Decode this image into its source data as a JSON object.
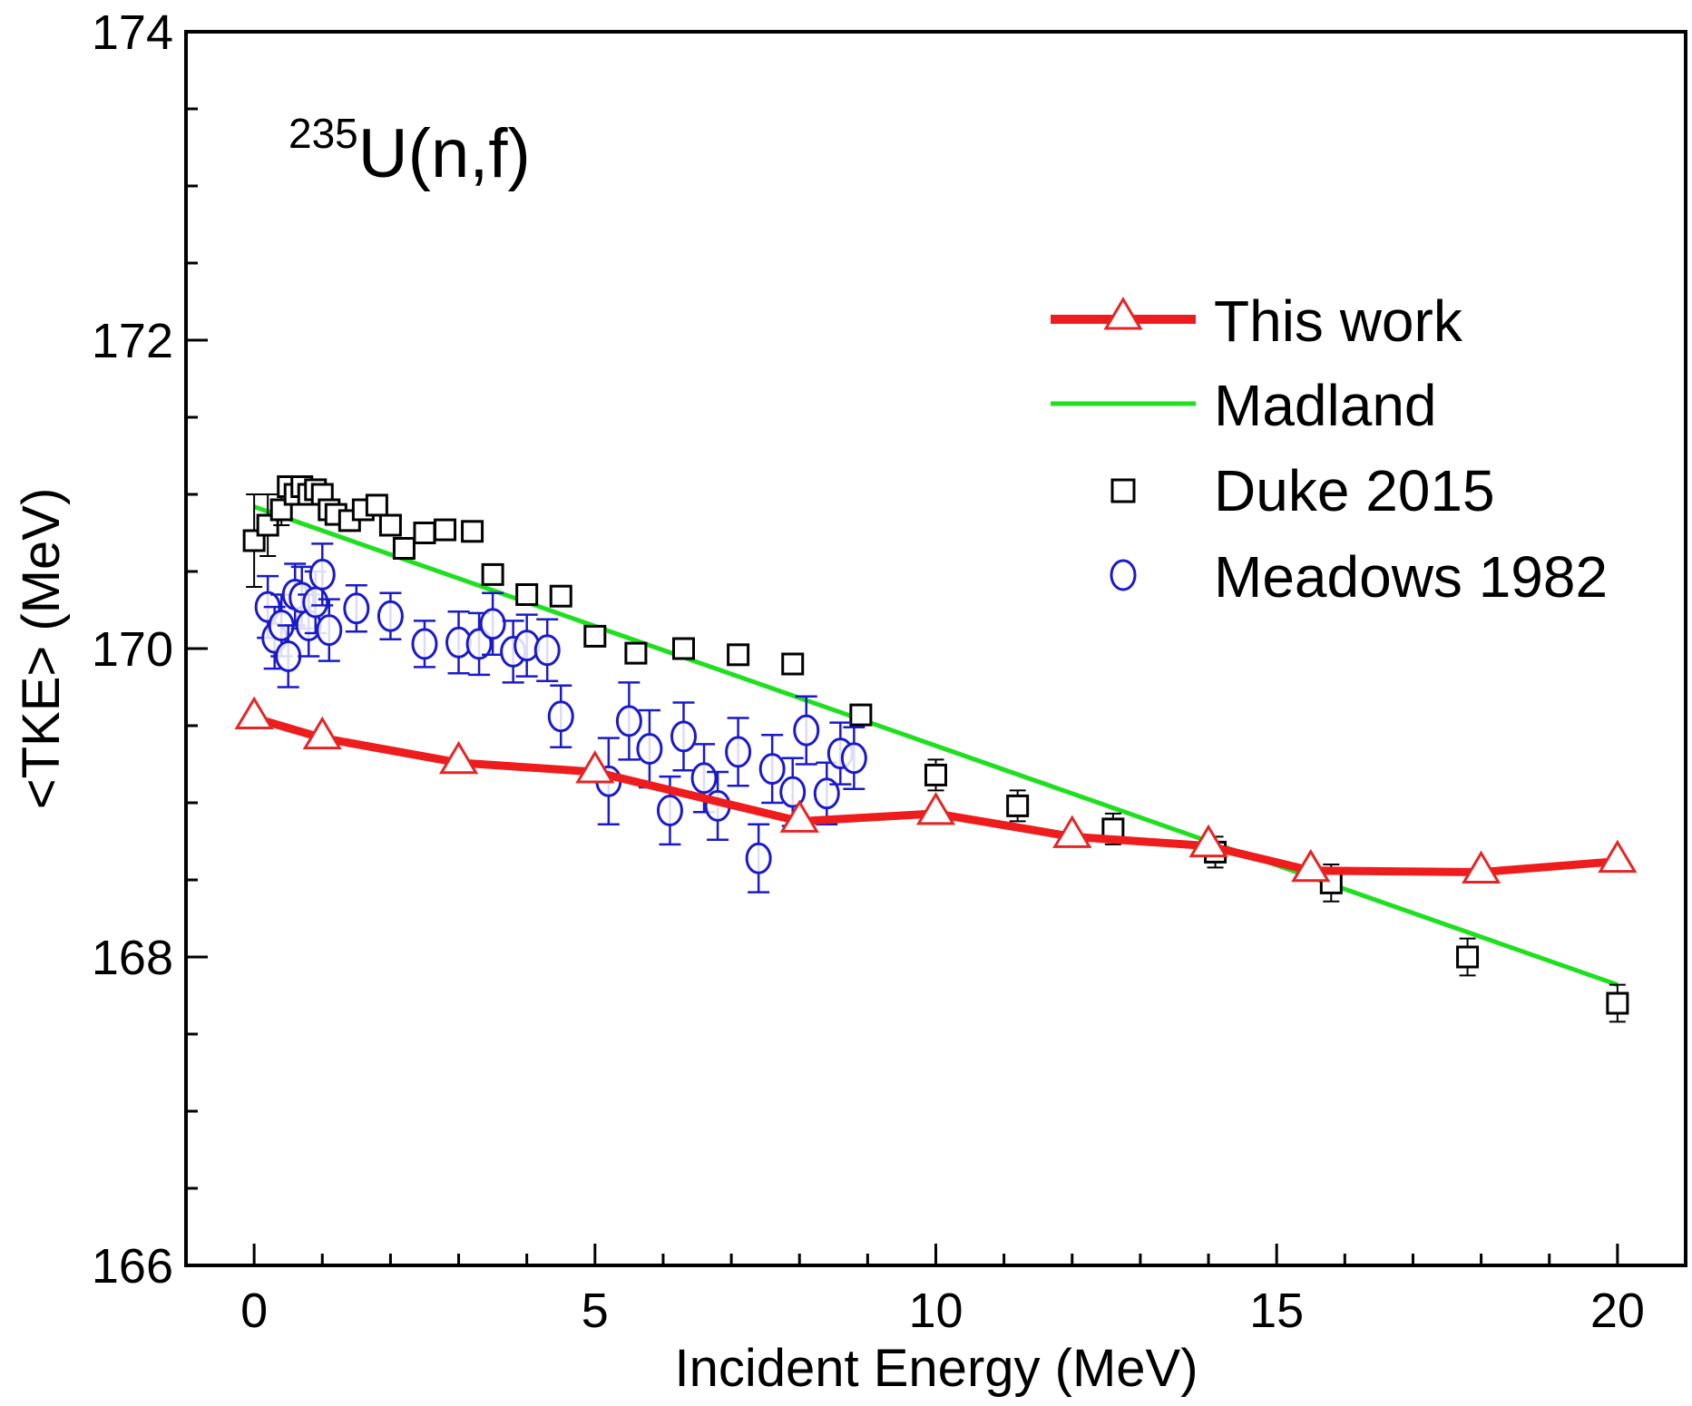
{
  "chart_data": {
    "type": "scatter",
    "title": "",
    "annotation": {
      "superscript": "235",
      "text": "U(n,f)"
    },
    "xlabel": "Incident Energy (MeV)",
    "ylabel": "<TKE> (MeV)",
    "xlim": [
      -1,
      21
    ],
    "ylim": [
      166,
      174
    ],
    "xticks": [
      0,
      5,
      10,
      15,
      20
    ],
    "yticks": [
      166,
      168,
      170,
      172,
      174
    ],
    "xtick_labels": [
      "0",
      "5",
      "10",
      "15",
      "20"
    ],
    "ytick_labels": [
      "166",
      "168",
      "170",
      "172",
      "174"
    ],
    "grid": false,
    "legend_position": "top-right",
    "series": [
      {
        "name": "This work",
        "style": "line+triangle",
        "line_color": "#ee1c1c",
        "marker_color": "#e52525",
        "x": [
          0,
          1,
          3,
          5,
          8,
          10,
          12,
          14,
          15.5,
          18,
          20
        ],
        "y": [
          169.55,
          169.42,
          169.26,
          169.2,
          168.88,
          168.93,
          168.78,
          168.72,
          168.56,
          168.55,
          168.62
        ]
      },
      {
        "name": "Madland",
        "style": "line",
        "line_color": "#1ee01e",
        "x": [
          0,
          20
        ],
        "y": [
          170.92,
          167.82
        ]
      },
      {
        "name": "Duke 2015",
        "style": "square",
        "marker_color": "#000000",
        "x": [
          0,
          0.2,
          0.4,
          0.5,
          0.6,
          0.7,
          0.8,
          0.9,
          1.0,
          1.1,
          1.2,
          1.4,
          1.6,
          1.8,
          2.0,
          2.2,
          2.5,
          2.8,
          3.2,
          3.5,
          4.0,
          4.5,
          5.0,
          5.6,
          6.3,
          7.1,
          7.9,
          8.9,
          10.0,
          11.2,
          12.6,
          14.1,
          15.8,
          17.8,
          20.0
        ],
        "y": [
          170.7,
          170.8,
          170.9,
          171.05,
          171.0,
          171.05,
          171.0,
          171.03,
          171.0,
          170.9,
          170.87,
          170.83,
          170.9,
          170.93,
          170.8,
          170.65,
          170.75,
          170.77,
          170.76,
          170.48,
          170.35,
          170.34,
          170.08,
          169.97,
          170.0,
          169.96,
          169.9,
          169.57,
          169.18,
          168.98,
          168.83,
          168.68,
          168.48,
          168.0,
          167.7
        ],
        "yerr": [
          0.3,
          0.2,
          0.1,
          0.05,
          0.05,
          0.05,
          0.05,
          0.05,
          0.05,
          0.05,
          0.05,
          0.05,
          0.05,
          0.05,
          0.05,
          0.05,
          0.05,
          0.05,
          0.05,
          0.05,
          0.05,
          0.05,
          0.05,
          0.05,
          0.05,
          0.05,
          0.05,
          0.05,
          0.1,
          0.1,
          0.1,
          0.1,
          0.12,
          0.12,
          0.12
        ]
      },
      {
        "name": "Meadows 1982",
        "style": "circle",
        "marker_color": "#1a1acc",
        "x": [
          0.2,
          0.3,
          0.4,
          0.5,
          0.6,
          0.7,
          0.8,
          0.9,
          1.0,
          1.1,
          1.5,
          2.0,
          2.5,
          3.0,
          3.3,
          3.5,
          3.8,
          4.0,
          4.3,
          4.5,
          5.2,
          5.5,
          5.8,
          6.1,
          6.3,
          6.6,
          6.8,
          7.1,
          7.4,
          7.6,
          7.9,
          8.1,
          8.4,
          8.6,
          8.8
        ],
        "y": [
          170.27,
          170.07,
          170.15,
          169.95,
          170.35,
          170.33,
          170.15,
          170.3,
          170.48,
          170.12,
          170.26,
          170.21,
          170.03,
          170.04,
          170.03,
          170.16,
          169.98,
          170.02,
          169.99,
          169.56,
          169.14,
          169.53,
          169.35,
          168.95,
          169.43,
          169.16,
          168.98,
          169.33,
          168.64,
          169.22,
          169.07,
          169.47,
          169.06,
          169.32,
          169.29
        ],
        "yerr": [
          0.2,
          0.2,
          0.2,
          0.2,
          0.2,
          0.2,
          0.2,
          0.2,
          0.2,
          0.2,
          0.15,
          0.15,
          0.15,
          0.2,
          0.2,
          0.2,
          0.2,
          0.2,
          0.2,
          0.2,
          0.28,
          0.25,
          0.25,
          0.22,
          0.22,
          0.22,
          0.22,
          0.22,
          0.22,
          0.22,
          0.22,
          0.22,
          0.2,
          0.2,
          0.2
        ]
      }
    ]
  }
}
